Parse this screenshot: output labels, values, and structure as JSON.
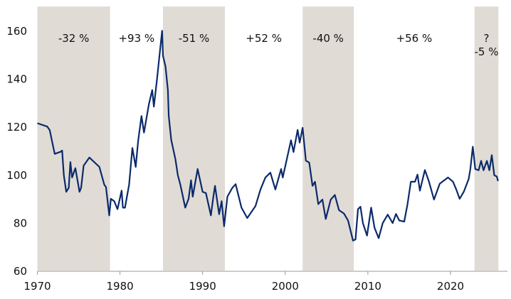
{
  "chart_data": {
    "type": "line",
    "title": "",
    "xlabel": "",
    "ylabel": "",
    "xlim": [
      1970,
      2026.9
    ],
    "ylim": [
      60,
      170
    ],
    "x_ticks": [
      1970,
      1980,
      1990,
      2000,
      2010,
      2020
    ],
    "x_tick_labels": [
      "1970",
      "1980",
      "1990",
      "2000",
      "2010",
      "2020"
    ],
    "y_ticks": [
      60,
      80,
      100,
      120,
      140,
      160
    ],
    "y_tick_labels": [
      "60",
      "80",
      "100",
      "120",
      "140",
      "160"
    ],
    "grid": false,
    "colors": {
      "line": "#0b2a6b",
      "band": "#e0dcd5",
      "axis": "#999999"
    },
    "periods": [
      {
        "start": 1970.0,
        "end": 1978.8,
        "shaded": true,
        "label": "-32 %"
      },
      {
        "start": 1978.8,
        "end": 1985.2,
        "shaded": false,
        "label": "+93 %"
      },
      {
        "start": 1985.2,
        "end": 1992.7,
        "shaded": true,
        "label": "-51 %"
      },
      {
        "start": 1992.7,
        "end": 2002.1,
        "shaded": false,
        "label": "+52 %"
      },
      {
        "start": 2002.1,
        "end": 2008.3,
        "shaded": true,
        "label": "-40 %"
      },
      {
        "start": 2008.3,
        "end": 2022.9,
        "shaded": false,
        "label": "+56 %"
      },
      {
        "start": 2022.9,
        "end": 2025.8,
        "shaded": true,
        "label": "?",
        "label2": "-5 %"
      }
    ],
    "series": [
      {
        "x": [
          1970.0,
          1971.2,
          1971.5,
          1971.8,
          1972.1,
          1972.8,
          1973.0,
          1973.2,
          1973.5,
          1973.8,
          1974.0,
          1974.2,
          1974.6,
          1975.1,
          1975.3,
          1975.6,
          1976.3,
          1977.5,
          1978.1,
          1978.3,
          1978.7,
          1978.9,
          1979.3,
          1979.7,
          1980.2,
          1980.35,
          1980.6,
          1981.1,
          1981.5,
          1981.9,
          1982.2,
          1982.6,
          1982.9,
          1983.5,
          1983.9,
          1984.1,
          1984.5,
          1984.7,
          1985.1,
          1985.2,
          1985.5,
          1985.8,
          1985.9,
          1986.2,
          1986.7,
          1987.0,
          1987.3,
          1987.9,
          1988.3,
          1988.6,
          1988.8,
          1989.4,
          1990.0,
          1990.4,
          1991.0,
          1991.3,
          1991.5,
          1992.0,
          1992.3,
          1992.6,
          1993.0,
          1993.6,
          1994.0,
          1994.7,
          1995.4,
          1996.4,
          1997.0,
          1997.6,
          1998.2,
          1998.8,
          1999.5,
          1999.7,
          2000.2,
          2000.7,
          2001.0,
          2001.5,
          2001.75,
          2002.1,
          2002.5,
          2002.9,
          2003.3,
          2003.6,
          2004.0,
          2004.5,
          2004.9,
          2005.5,
          2006.0,
          2006.5,
          2007.1,
          2007.6,
          2008.2,
          2008.5,
          2008.8,
          2009.1,
          2009.4,
          2009.9,
          2010.4,
          2010.8,
          2011.3,
          2011.8,
          2012.4,
          2013.0,
          2013.4,
          2013.8,
          2014.4,
          2014.8,
          2015.2,
          2015.7,
          2016.0,
          2016.3,
          2016.9,
          2017.4,
          2018.0,
          2018.7,
          2019.7,
          2020.3,
          2020.7,
          2021.1,
          2021.6,
          2022.2,
          2022.4,
          2022.7,
          2023.0,
          2023.4,
          2023.7,
          2024.0,
          2024.4,
          2024.7,
          2025.0,
          2025.3,
          2025.6,
          2025.75
        ],
        "y": [
          121.4,
          120.0,
          118.5,
          113.5,
          108.6,
          109.5,
          110.0,
          99.7,
          92.8,
          94.5,
          105.2,
          98.8,
          102.7,
          92.8,
          94.5,
          103.7,
          107.1,
          103.2,
          95.8,
          94.8,
          83.0,
          89.9,
          88.9,
          85.6,
          93.3,
          86.2,
          86.2,
          95.8,
          111.1,
          103.2,
          114.0,
          124.4,
          117.5,
          129.3,
          135.2,
          128.3,
          140.2,
          147.1,
          159.9,
          149.5,
          145.1,
          135.2,
          124.4,
          114.4,
          106.5,
          99.7,
          95.8,
          86.2,
          89.9,
          97.6,
          90.8,
          102.3,
          92.8,
          92.3,
          83.0,
          90.8,
          95.3,
          83.5,
          88.9,
          78.5,
          90.8,
          94.5,
          96.0,
          86.2,
          81.9,
          86.9,
          93.8,
          98.8,
          100.8,
          93.8,
          102.3,
          98.8,
          106.5,
          114.3,
          109.4,
          118.6,
          113.3,
          119.5,
          105.8,
          105.0,
          95.3,
          97.0,
          87.7,
          89.6,
          81.5,
          89.6,
          91.5,
          85.2,
          83.8,
          80.9,
          72.5,
          73.0,
          85.6,
          86.6,
          79.8,
          74.6,
          86.2,
          77.9,
          73.5,
          79.8,
          83.3,
          79.8,
          83.6,
          80.9,
          80.4,
          87.7,
          97.0,
          97.0,
          100.0,
          93.3,
          101.9,
          97.0,
          89.6,
          96.2,
          98.8,
          97.0,
          93.8,
          89.9,
          92.8,
          98.1,
          102.3,
          111.6,
          102.3,
          101.8,
          105.7,
          101.8,
          105.7,
          101.8,
          108.1,
          99.7,
          99.2,
          97.3
        ]
      }
    ]
  }
}
